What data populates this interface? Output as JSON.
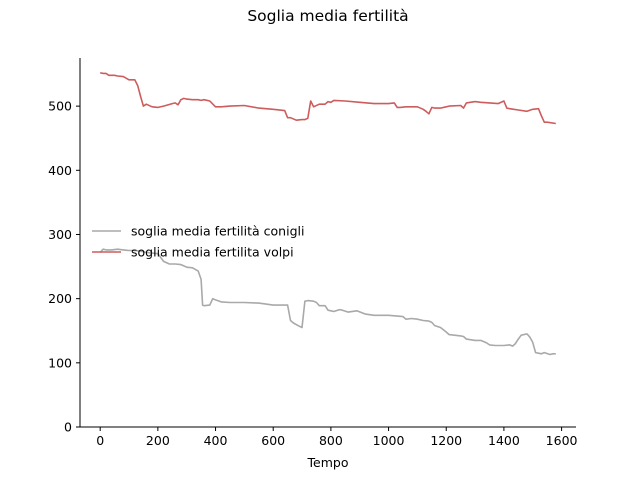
{
  "chart_data": {
    "type": "line",
    "title": "Soglia media fertilità",
    "xlabel": "Tempo",
    "ylabel": "",
    "xlim": [
      -70,
      1650
    ],
    "ylim": [
      0,
      575
    ],
    "xticks": [
      0,
      200,
      400,
      600,
      800,
      1000,
      1200,
      1400,
      1600
    ],
    "yticks": [
      0,
      100,
      200,
      300,
      400,
      500
    ],
    "grid": false,
    "legend_position": "center-left",
    "series": [
      {
        "name": "soglia media fertilità conigli",
        "color": "#a9a9a9",
        "x": [
          0,
          10,
          20,
          40,
          60,
          80,
          100,
          120,
          140,
          160,
          180,
          200,
          220,
          240,
          260,
          280,
          290,
          300,
          320,
          340,
          350,
          355,
          360,
          380,
          390,
          400,
          420,
          450,
          500,
          550,
          600,
          620,
          640,
          650,
          660,
          670,
          690,
          700,
          710,
          720,
          740,
          750,
          760,
          780,
          790,
          800,
          810,
          830,
          840,
          860,
          890,
          920,
          950,
          1000,
          1050,
          1060,
          1080,
          1100,
          1120,
          1140,
          1150,
          1160,
          1180,
          1200,
          1210,
          1250,
          1260,
          1270,
          1300,
          1320,
          1340,
          1350,
          1370,
          1400,
          1420,
          1430,
          1440,
          1450,
          1460,
          1480,
          1490,
          1500,
          1510,
          1520,
          1530,
          1540,
          1560,
          1570,
          1580
        ],
        "y": [
          272,
          277,
          276,
          276,
          277,
          276,
          275,
          275,
          274,
          272,
          271,
          270,
          258,
          254,
          254,
          253,
          251,
          249,
          248,
          243,
          230,
          190,
          189,
          190,
          200,
          198,
          195,
          194,
          194,
          193,
          190,
          190,
          190,
          190,
          166,
          162,
          157,
          155,
          196,
          197,
          196,
          194,
          189,
          189,
          182,
          181,
          180,
          183,
          182,
          179,
          181,
          176,
          174,
          174,
          172,
          168,
          169,
          168,
          166,
          165,
          163,
          158,
          155,
          148,
          144,
          142,
          141,
          137,
          135,
          135,
          131,
          128,
          127,
          127,
          128,
          126,
          130,
          137,
          143,
          145,
          140,
          132,
          116,
          115,
          114,
          116,
          113,
          114,
          114
        ]
      },
      {
        "name": "soglia media fertilita volpi",
        "color": "#cd5c5c",
        "x": [
          0,
          10,
          20,
          30,
          50,
          60,
          80,
          100,
          120,
          130,
          140,
          150,
          160,
          180,
          200,
          220,
          250,
          260,
          270,
          280,
          290,
          300,
          320,
          340,
          350,
          360,
          380,
          400,
          420,
          450,
          500,
          550,
          600,
          640,
          650,
          660,
          680,
          700,
          710,
          720,
          730,
          740,
          760,
          780,
          790,
          800,
          810,
          850,
          900,
          950,
          1000,
          1020,
          1030,
          1040,
          1060,
          1100,
          1120,
          1130,
          1140,
          1150,
          1160,
          1180,
          1200,
          1210,
          1250,
          1260,
          1270,
          1300,
          1320,
          1350,
          1380,
          1400,
          1410,
          1420,
          1450,
          1480,
          1500,
          1520,
          1530,
          1540,
          1550,
          1580
        ],
        "y": [
          552,
          551,
          551,
          548,
          548,
          547,
          546,
          541,
          541,
          532,
          515,
          500,
          503,
          499,
          498,
          500,
          504,
          505,
          502,
          510,
          512,
          511,
          510,
          510,
          509,
          510,
          508,
          499,
          499,
          500,
          501,
          497,
          495,
          493,
          482,
          482,
          478,
          479,
          479,
          481,
          508,
          499,
          503,
          503,
          507,
          506,
          509,
          508,
          506,
          504,
          504,
          505,
          498,
          498,
          499,
          499,
          495,
          492,
          488,
          498,
          497,
          497,
          499,
          500,
          501,
          497,
          505,
          507,
          506,
          505,
          504,
          508,
          497,
          496,
          494,
          492,
          495,
          496,
          485,
          475,
          475,
          473
        ]
      }
    ]
  }
}
